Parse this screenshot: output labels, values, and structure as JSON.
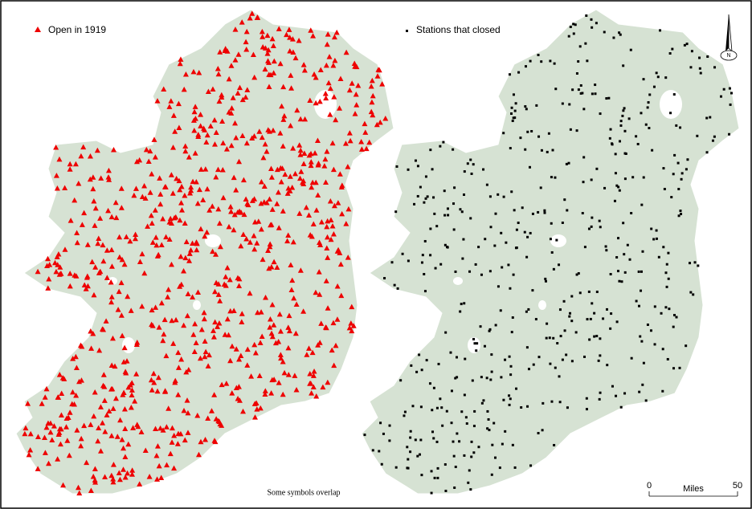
{
  "legends": [
    {
      "label": "Open in 1919"
    },
    {
      "label": "Stations that closed"
    }
  ],
  "note": "Some symbols overlap",
  "scale_bar": {
    "start": 0,
    "unit": "Miles",
    "end": 50
  },
  "north_arrow": {
    "label": "N"
  }
}
